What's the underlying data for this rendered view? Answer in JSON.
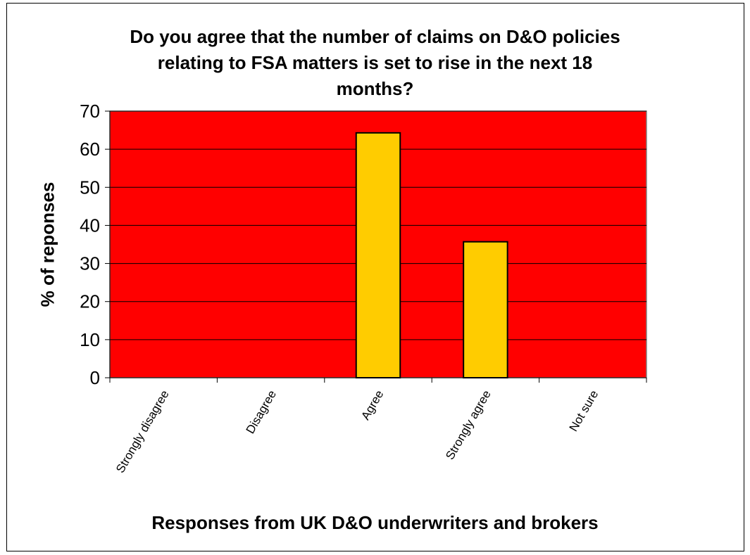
{
  "chart_data": {
    "type": "bar",
    "title_lines": [
      "Do you agree that the number of claims on D&O policies",
      "relating to FSA matters is set to rise in the next 18",
      "months?"
    ],
    "xlabel": "Responses from UK D&O underwriters and brokers",
    "ylabel": "% of reponses",
    "categories": [
      "Strongly disagree",
      "Disagree",
      "Agree",
      "Strongly agree",
      "Not sure"
    ],
    "values": [
      0,
      0,
      64.3,
      35.7,
      0
    ],
    "ylim": [
      0,
      70
    ],
    "yticks": [
      0,
      10,
      20,
      30,
      40,
      50,
      60,
      70
    ],
    "grid": true,
    "legend": "none",
    "colors": {
      "plot_background": "#FF0000",
      "bar_fill": "#FFCC00",
      "bar_stroke": "#000000",
      "gridline": "#000000"
    }
  }
}
